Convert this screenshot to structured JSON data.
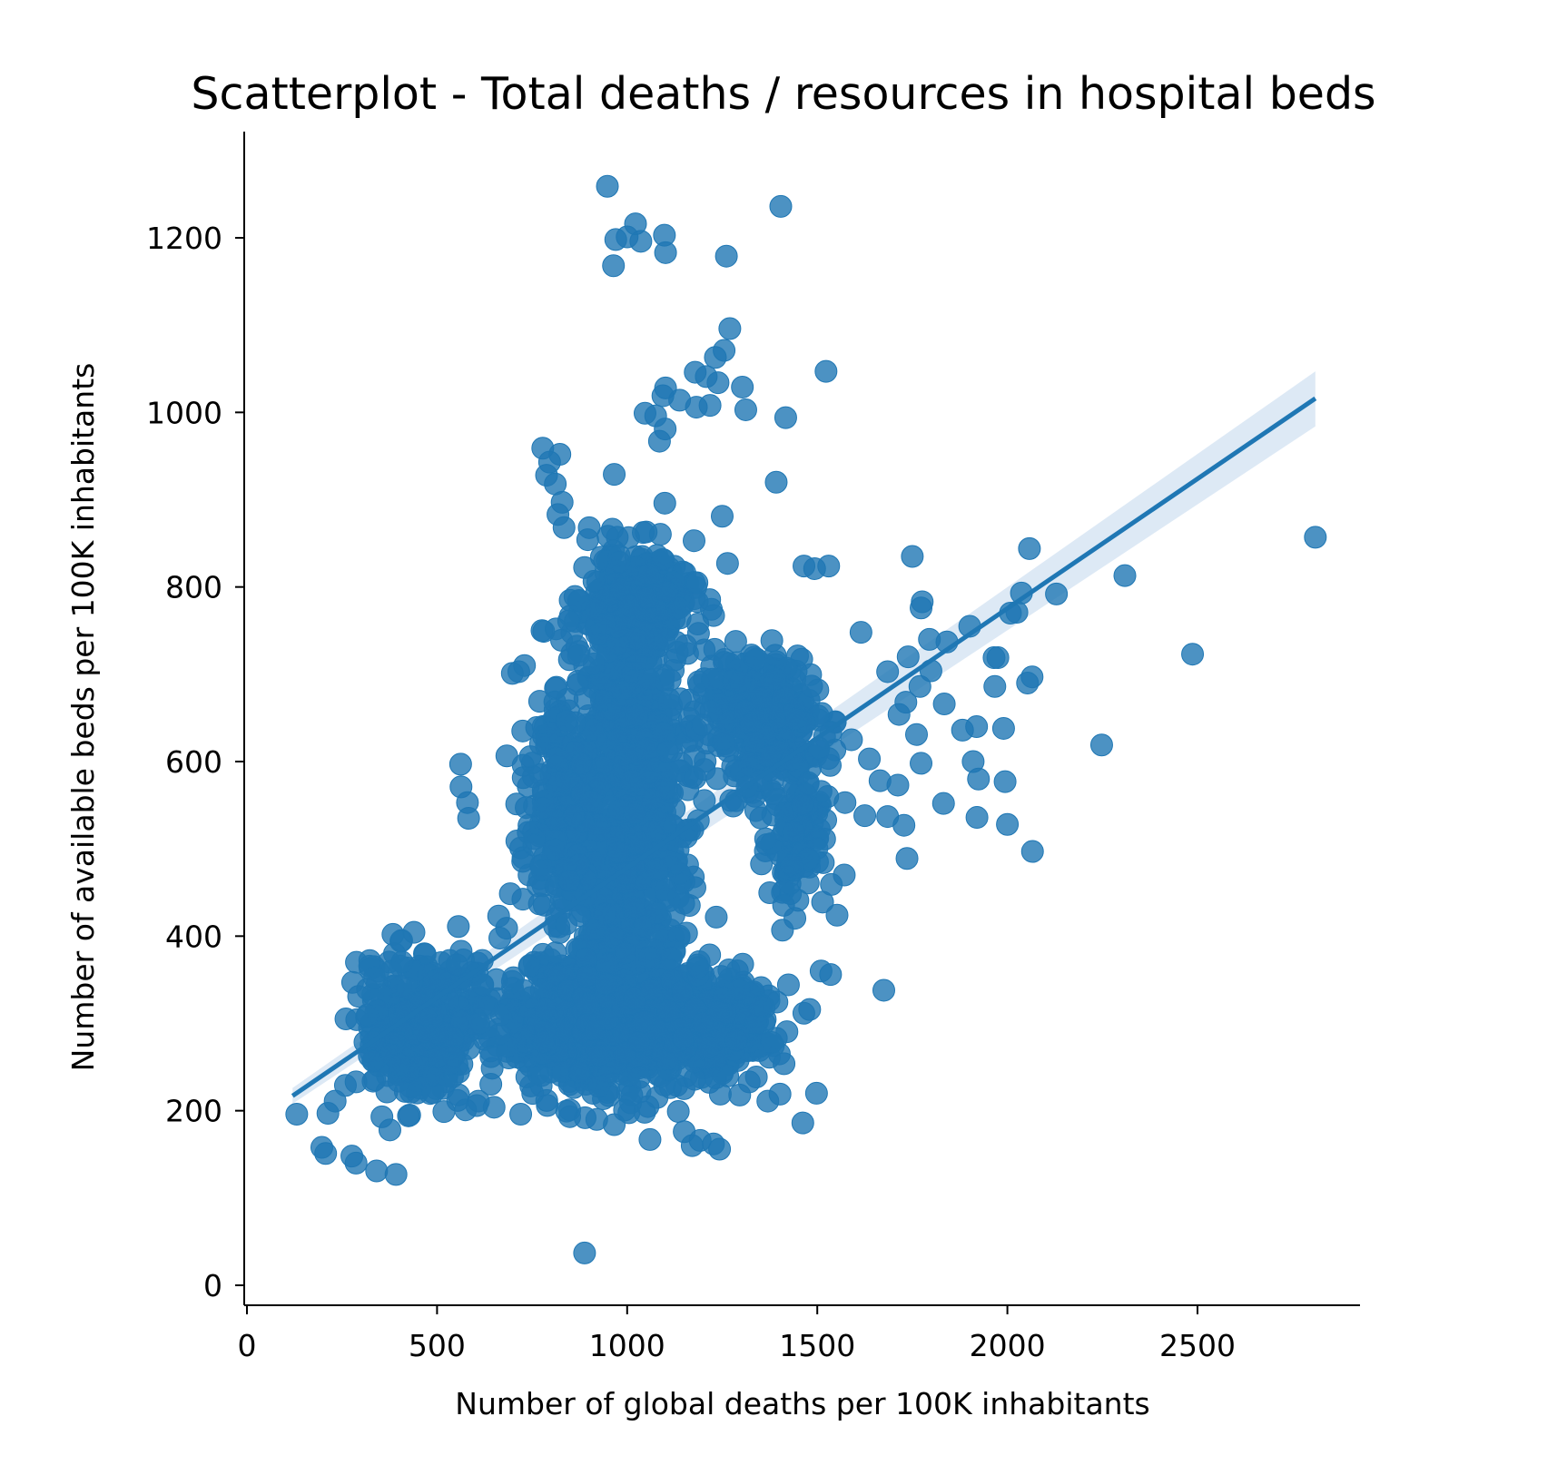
{
  "chart_data": {
    "type": "scatter",
    "title": "Scatterplot - Total deaths / resources in hospital beds",
    "xlabel": "Number of global deaths per 100K inhabitants",
    "ylabel": "Number of available beds per 100K inhabitants",
    "xlim": [
      -10,
      2940
    ],
    "ylim": [
      -25,
      1317
    ],
    "x_ticks": [
      0,
      500,
      1000,
      1500,
      2000,
      2500
    ],
    "y_ticks": [
      0,
      200,
      400,
      600,
      800,
      1000,
      1200
    ],
    "x_tick_labels": [
      "0",
      "500",
      "1000",
      "1500",
      "2000",
      "2500"
    ],
    "y_tick_labels": [
      "0",
      "200",
      "400",
      "600",
      "800",
      "1000",
      "1200"
    ],
    "grid": false,
    "legend": "none",
    "colors": {
      "points": "#1f77b4",
      "regression": "#1f77b4",
      "confidence_band": "#c6dbef"
    },
    "regression": {
      "x": [
        120,
        2810
      ],
      "y": [
        217,
        1016
      ],
      "ci_upper_end": 1047,
      "ci_lower_end": 984
    },
    "series": [
      {
        "points": [
          [
            948,
            1259
          ],
          [
            1404,
            1236
          ],
          [
            1022,
            1216
          ],
          [
            1098,
            1203
          ],
          [
            970,
            1198
          ],
          [
            1000,
            1201
          ],
          [
            1036,
            1196
          ],
          [
            1101,
            1183
          ],
          [
            964,
            1168
          ],
          [
            1261,
            1179
          ],
          [
            1270,
            1096
          ],
          [
            1255,
            1071
          ],
          [
            1232,
            1063
          ],
          [
            1523,
            1047
          ],
          [
            1179,
            1046
          ],
          [
            1208,
            1041
          ],
          [
            1239,
            1034
          ],
          [
            1303,
            1029
          ],
          [
            1101,
            1028
          ],
          [
            1094,
            1019
          ],
          [
            1138,
            1014
          ],
          [
            1218,
            1008
          ],
          [
            1312,
            1003
          ],
          [
            1182,
            1006
          ],
          [
            1047,
            999
          ],
          [
            1075,
            996
          ],
          [
            1417,
            994
          ],
          [
            1100,
            981
          ],
          [
            1085,
            967
          ],
          [
            778,
            959
          ],
          [
            823,
            952
          ],
          [
            796,
            943
          ],
          [
            788,
            928
          ],
          [
            811,
            918
          ],
          [
            966,
            929
          ],
          [
            1392,
            920
          ],
          [
            829,
            897
          ],
          [
            818,
            883
          ],
          [
            834,
            868
          ],
          [
            1099,
            896
          ],
          [
            1250,
            881
          ],
          [
            1050,
            863
          ],
          [
            1176,
            853
          ],
          [
            1264,
            827
          ],
          [
            2058,
            844
          ],
          [
            1750,
            835
          ],
          [
            1465,
            824
          ],
          [
            1493,
            821
          ],
          [
            1530,
            824
          ],
          [
            2309,
            813
          ],
          [
            2810,
            857
          ],
          [
            2037,
            793
          ],
          [
            2129,
            792
          ],
          [
            1776,
            783
          ],
          [
            1773,
            776
          ],
          [
            1901,
            755
          ],
          [
            2008,
            770
          ],
          [
            2025,
            771
          ],
          [
            1795,
            740
          ],
          [
            1841,
            737
          ],
          [
            776,
            750
          ],
          [
            813,
            752
          ],
          [
            715,
            703
          ],
          [
            730,
            710
          ],
          [
            698,
            701
          ],
          [
            1615,
            748
          ],
          [
            1685,
            703
          ],
          [
            1739,
            720
          ],
          [
            1770,
            686
          ],
          [
            1799,
            704
          ],
          [
            1834,
            666
          ],
          [
            1761,
            631
          ],
          [
            1715,
            654
          ],
          [
            1733,
            668
          ],
          [
            1882,
            636
          ],
          [
            1919,
            640
          ],
          [
            1965,
            719
          ],
          [
            1975,
            719
          ],
          [
            1967,
            686
          ],
          [
            1990,
            638
          ],
          [
            2053,
            690
          ],
          [
            2065,
            697
          ],
          [
            1773,
            598
          ],
          [
            1832,
            552
          ],
          [
            1924,
            580
          ],
          [
            1910,
            600
          ],
          [
            1994,
            577
          ],
          [
            1920,
            536
          ],
          [
            2000,
            528
          ],
          [
            2066,
            497
          ],
          [
            2248,
            619
          ],
          [
            2487,
            723
          ],
          [
            1590,
            625
          ],
          [
            1637,
            603
          ],
          [
            1665,
            578
          ],
          [
            1712,
            573
          ],
          [
            1685,
            537
          ],
          [
            1728,
            527
          ],
          [
            1736,
            489
          ],
          [
            1625,
            538
          ],
          [
            1573,
            553
          ],
          [
            1571,
            470
          ],
          [
            1552,
            424
          ],
          [
            1514,
            439
          ],
          [
            1675,
            338
          ],
          [
            1498,
            220
          ],
          [
            1462,
            186
          ],
          [
            1480,
            316
          ],
          [
            1510,
            360
          ],
          [
            1535,
            356
          ],
          [
            888,
            37
          ],
          [
            392,
            127
          ],
          [
            341,
            131
          ],
          [
            287,
            140
          ],
          [
            276,
            148
          ],
          [
            197,
            158
          ],
          [
            207,
            151
          ],
          [
            131,
            196
          ],
          [
            213,
            197
          ],
          [
            232,
            211
          ],
          [
            259,
            229
          ],
          [
            287,
            233
          ],
          [
            278,
            347
          ],
          [
            288,
            370
          ],
          [
            323,
            372
          ],
          [
            384,
            402
          ],
          [
            388,
            380
          ],
          [
            407,
            395
          ],
          [
            355,
            193
          ],
          [
            376,
            178
          ],
          [
            428,
            195
          ],
          [
            518,
            199
          ],
          [
            556,
            411
          ],
          [
            562,
            597
          ],
          [
            563,
            571
          ],
          [
            580,
            553
          ],
          [
            583,
            535
          ],
          [
            662,
            423
          ],
          [
            683,
            409
          ],
          [
            720,
            501
          ],
          [
            1060,
            167
          ],
          [
            1171,
            160
          ],
          [
            1150,
            176
          ],
          [
            1192,
            166
          ],
          [
            1227,
            162
          ],
          [
            1243,
            156
          ],
          [
            1370,
            211
          ],
          [
            1402,
            219
          ],
          [
            1321,
            233
          ],
          [
            1296,
            218
          ],
          [
            920,
            190
          ],
          [
            966,
            184
          ],
          [
            849,
            201
          ],
          [
            790,
            206
          ],
          [
            720,
            196
          ],
          [
            650,
            204
          ],
          [
            609,
            211
          ],
          [
            575,
            201
          ]
        ]
      }
    ]
  }
}
